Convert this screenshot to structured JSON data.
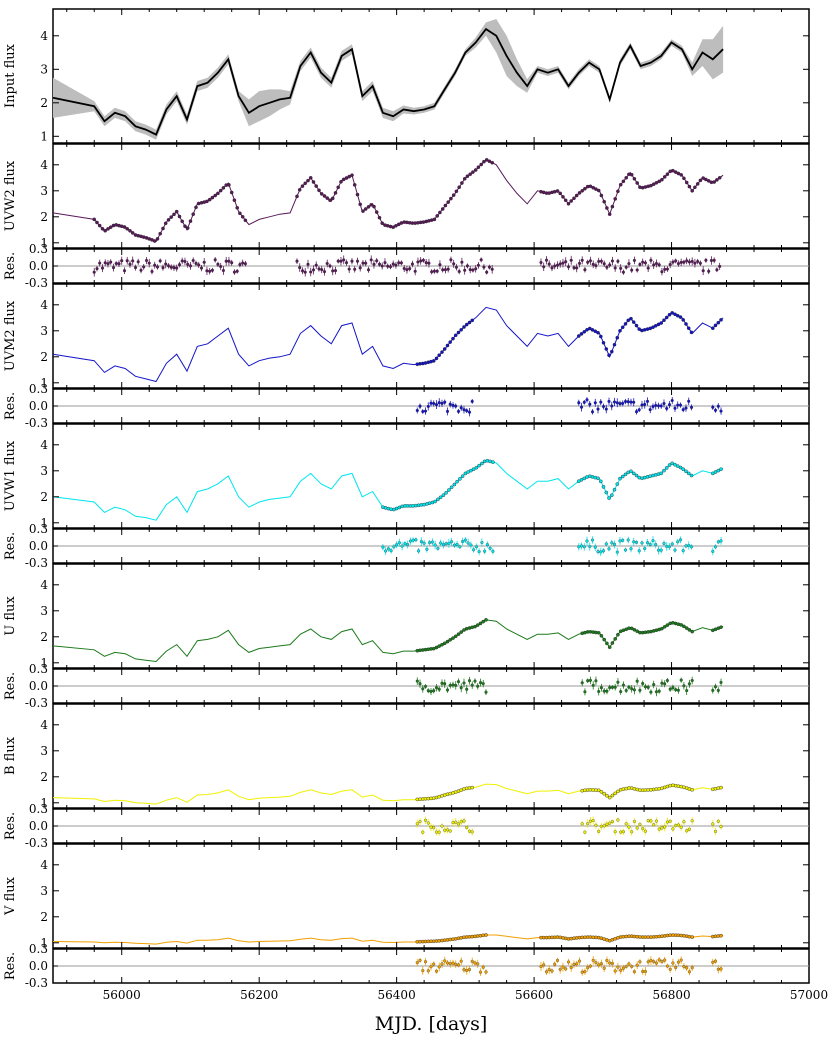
{
  "chart_data": {
    "type": "line",
    "xlabel": "MJD. [days]",
    "xlim": [
      55900,
      57000
    ],
    "x_ticks": [
      56000,
      56200,
      56400,
      56600,
      56800,
      57000
    ],
    "flux_ylim": [
      0.8,
      4.8
    ],
    "flux_ticks": [
      1,
      2,
      3,
      4
    ],
    "res_ylim": [
      -0.3,
      0.3
    ],
    "res_ticks": [
      -0.3,
      0.0,
      0.3
    ],
    "grid": false,
    "model_x": [
      55900,
      55960,
      55975,
      55990,
      56005,
      56020,
      56035,
      56050,
      56065,
      56080,
      56095,
      56110,
      56125,
      56140,
      56155,
      56170,
      56185,
      56200,
      56215,
      56230,
      56245,
      56260,
      56275,
      56290,
      56305,
      56320,
      56335,
      56350,
      56365,
      56380,
      56395,
      56410,
      56425,
      56440,
      56455,
      56470,
      56485,
      56500,
      56515,
      56530,
      56545,
      56560,
      56575,
      56590,
      56605,
      56620,
      56635,
      56650,
      56665,
      56680,
      56695,
      56710,
      56725,
      56740,
      56755,
      56770,
      56785,
      56800,
      56815,
      56830,
      56845,
      56860,
      56875
    ],
    "panels": [
      {
        "flux_label": "Input flux",
        "color": "#000000",
        "has_band": true,
        "show_residual": false,
        "model_y": [
          2.15,
          1.9,
          1.45,
          1.7,
          1.6,
          1.3,
          1.2,
          1.05,
          1.8,
          2.2,
          1.5,
          2.5,
          2.6,
          2.9,
          3.3,
          2.2,
          1.7,
          1.9,
          2.0,
          2.1,
          2.15,
          3.1,
          3.5,
          2.9,
          2.6,
          3.4,
          3.6,
          2.2,
          2.5,
          1.7,
          1.6,
          1.8,
          1.75,
          1.8,
          1.9,
          2.4,
          2.9,
          3.5,
          3.8,
          4.2,
          4.0,
          3.4,
          2.9,
          2.5,
          3.0,
          2.9,
          3.0,
          2.5,
          2.9,
          3.2,
          3.0,
          2.1,
          3.2,
          3.7,
          3.1,
          3.2,
          3.4,
          3.8,
          3.6,
          3.0,
          3.5,
          3.3,
          3.6
        ],
        "band_width": [
          0.6,
          0.15,
          0.15,
          0.15,
          0.15,
          0.15,
          0.15,
          0.15,
          0.15,
          0.15,
          0.15,
          0.15,
          0.15,
          0.15,
          0.15,
          0.15,
          0.4,
          0.45,
          0.4,
          0.3,
          0.2,
          0.15,
          0.15,
          0.15,
          0.15,
          0.15,
          0.15,
          0.15,
          0.15,
          0.15,
          0.15,
          0.12,
          0.1,
          0.1,
          0.1,
          0.1,
          0.1,
          0.1,
          0.15,
          0.2,
          0.5,
          0.6,
          0.4,
          0.2,
          0.1,
          0.1,
          0.1,
          0.1,
          0.1,
          0.1,
          0.1,
          0.1,
          0.1,
          0.1,
          0.1,
          0.1,
          0.1,
          0.1,
          0.1,
          0.2,
          0.4,
          0.6,
          0.7
        ],
        "obs_ranges": []
      },
      {
        "flux_label": "UVW2 flux",
        "color": "#5a1a5a",
        "has_band": false,
        "show_residual": true,
        "model_y": [
          2.15,
          1.9,
          1.45,
          1.7,
          1.6,
          1.3,
          1.2,
          1.05,
          1.8,
          2.2,
          1.5,
          2.5,
          2.6,
          2.9,
          3.3,
          2.2,
          1.7,
          1.9,
          2.0,
          2.1,
          2.15,
          3.1,
          3.5,
          2.9,
          2.6,
          3.4,
          3.6,
          2.2,
          2.5,
          1.7,
          1.6,
          1.8,
          1.75,
          1.8,
          1.9,
          2.4,
          2.9,
          3.5,
          3.8,
          4.2,
          4.0,
          3.4,
          2.9,
          2.5,
          3.0,
          2.9,
          3.0,
          2.5,
          2.9,
          3.2,
          3.0,
          2.1,
          3.2,
          3.7,
          3.1,
          3.2,
          3.4,
          3.8,
          3.6,
          3.0,
          3.5,
          3.3,
          3.6
        ],
        "obs_ranges": [
          [
            55960,
            56180
          ],
          [
            56255,
            56540
          ],
          [
            56610,
            56870
          ]
        ]
      },
      {
        "flux_label": "UVM2 flux",
        "color": "#1515c8",
        "has_band": false,
        "show_residual": true,
        "model_y": [
          2.1,
          1.85,
          1.4,
          1.65,
          1.55,
          1.25,
          1.15,
          1.05,
          1.75,
          2.1,
          1.45,
          2.4,
          2.5,
          2.8,
          3.1,
          2.1,
          1.65,
          1.85,
          1.95,
          2.0,
          2.1,
          2.9,
          3.2,
          2.8,
          2.5,
          3.2,
          3.3,
          2.1,
          2.4,
          1.65,
          1.55,
          1.75,
          1.7,
          1.75,
          1.85,
          2.3,
          2.8,
          3.2,
          3.5,
          3.9,
          3.8,
          3.2,
          2.8,
          2.4,
          2.9,
          2.8,
          2.9,
          2.4,
          2.8,
          3.1,
          2.9,
          2.0,
          3.0,
          3.5,
          3.0,
          3.1,
          3.3,
          3.7,
          3.5,
          2.9,
          3.3,
          3.1,
          3.5
        ],
        "obs_ranges": [
          [
            56430,
            56510
          ],
          [
            56665,
            56830
          ],
          [
            56860,
            56875
          ]
        ]
      },
      {
        "flux_label": "UVW1 flux",
        "color": "#00e5ee",
        "has_band": false,
        "show_residual": true,
        "model_y": [
          2.0,
          1.8,
          1.4,
          1.6,
          1.5,
          1.25,
          1.2,
          1.1,
          1.7,
          2.0,
          1.4,
          2.2,
          2.3,
          2.5,
          2.8,
          2.0,
          1.6,
          1.8,
          1.9,
          1.95,
          2.0,
          2.6,
          2.9,
          2.5,
          2.3,
          2.8,
          2.9,
          2.0,
          2.2,
          1.6,
          1.5,
          1.65,
          1.65,
          1.7,
          1.8,
          2.1,
          2.5,
          2.9,
          3.1,
          3.4,
          3.3,
          2.9,
          2.6,
          2.3,
          2.6,
          2.6,
          2.7,
          2.3,
          2.6,
          2.8,
          2.7,
          1.9,
          2.7,
          3.0,
          2.7,
          2.8,
          2.9,
          3.3,
          3.1,
          2.8,
          3.0,
          2.9,
          3.1
        ],
        "obs_ranges": [
          [
            56380,
            56540
          ],
          [
            56665,
            56830
          ],
          [
            56860,
            56875
          ]
        ]
      },
      {
        "flux_label": "U flux",
        "color": "#1b7a1b",
        "has_band": false,
        "show_residual": true,
        "model_y": [
          1.65,
          1.5,
          1.25,
          1.4,
          1.35,
          1.15,
          1.1,
          1.05,
          1.45,
          1.7,
          1.25,
          1.85,
          1.9,
          2.0,
          2.25,
          1.7,
          1.4,
          1.55,
          1.6,
          1.65,
          1.7,
          2.1,
          2.3,
          2.0,
          1.9,
          2.2,
          2.3,
          1.7,
          1.85,
          1.4,
          1.35,
          1.45,
          1.45,
          1.5,
          1.55,
          1.75,
          2.0,
          2.3,
          2.4,
          2.65,
          2.6,
          2.3,
          2.1,
          1.9,
          2.1,
          2.1,
          2.15,
          1.9,
          2.1,
          2.2,
          2.15,
          1.6,
          2.2,
          2.35,
          2.15,
          2.2,
          2.3,
          2.55,
          2.45,
          2.2,
          2.35,
          2.25,
          2.4
        ],
        "obs_ranges": [
          [
            56430,
            56530
          ],
          [
            56670,
            56830
          ],
          [
            56860,
            56875
          ]
        ]
      },
      {
        "flux_label": "B flux",
        "color": "#f0f000",
        "has_band": false,
        "show_residual": true,
        "model_y": [
          1.2,
          1.15,
          1.05,
          1.1,
          1.08,
          1.0,
          0.98,
          0.95,
          1.1,
          1.2,
          1.02,
          1.3,
          1.32,
          1.38,
          1.5,
          1.25,
          1.12,
          1.18,
          1.2,
          1.22,
          1.25,
          1.4,
          1.5,
          1.38,
          1.32,
          1.45,
          1.5,
          1.22,
          1.3,
          1.1,
          1.08,
          1.12,
          1.12,
          1.15,
          1.18,
          1.3,
          1.4,
          1.55,
          1.6,
          1.72,
          1.7,
          1.55,
          1.45,
          1.35,
          1.45,
          1.45,
          1.48,
          1.35,
          1.45,
          1.5,
          1.48,
          1.2,
          1.5,
          1.58,
          1.48,
          1.5,
          1.55,
          1.68,
          1.62,
          1.5,
          1.58,
          1.52,
          1.6
        ],
        "obs_ranges": [
          [
            56430,
            56510
          ],
          [
            56670,
            56830
          ],
          [
            56860,
            56875
          ]
        ]
      },
      {
        "flux_label": "V flux",
        "color": "#f0a000",
        "has_band": false,
        "show_residual": true,
        "model_y": [
          1.05,
          1.03,
          1.0,
          1.02,
          1.01,
          0.98,
          0.97,
          0.95,
          1.02,
          1.05,
          0.99,
          1.1,
          1.1,
          1.12,
          1.18,
          1.08,
          1.03,
          1.05,
          1.06,
          1.07,
          1.08,
          1.14,
          1.18,
          1.12,
          1.1,
          1.16,
          1.18,
          1.06,
          1.1,
          1.02,
          1.01,
          1.03,
          1.03,
          1.05,
          1.06,
          1.1,
          1.15,
          1.22,
          1.25,
          1.3,
          1.3,
          1.25,
          1.2,
          1.15,
          1.2,
          1.2,
          1.22,
          1.15,
          1.2,
          1.22,
          1.2,
          1.08,
          1.22,
          1.26,
          1.22,
          1.22,
          1.25,
          1.3,
          1.28,
          1.22,
          1.26,
          1.24,
          1.28
        ],
        "obs_ranges": [
          [
            56430,
            56530
          ],
          [
            56610,
            56830
          ],
          [
            56860,
            56875
          ]
        ]
      }
    ]
  }
}
